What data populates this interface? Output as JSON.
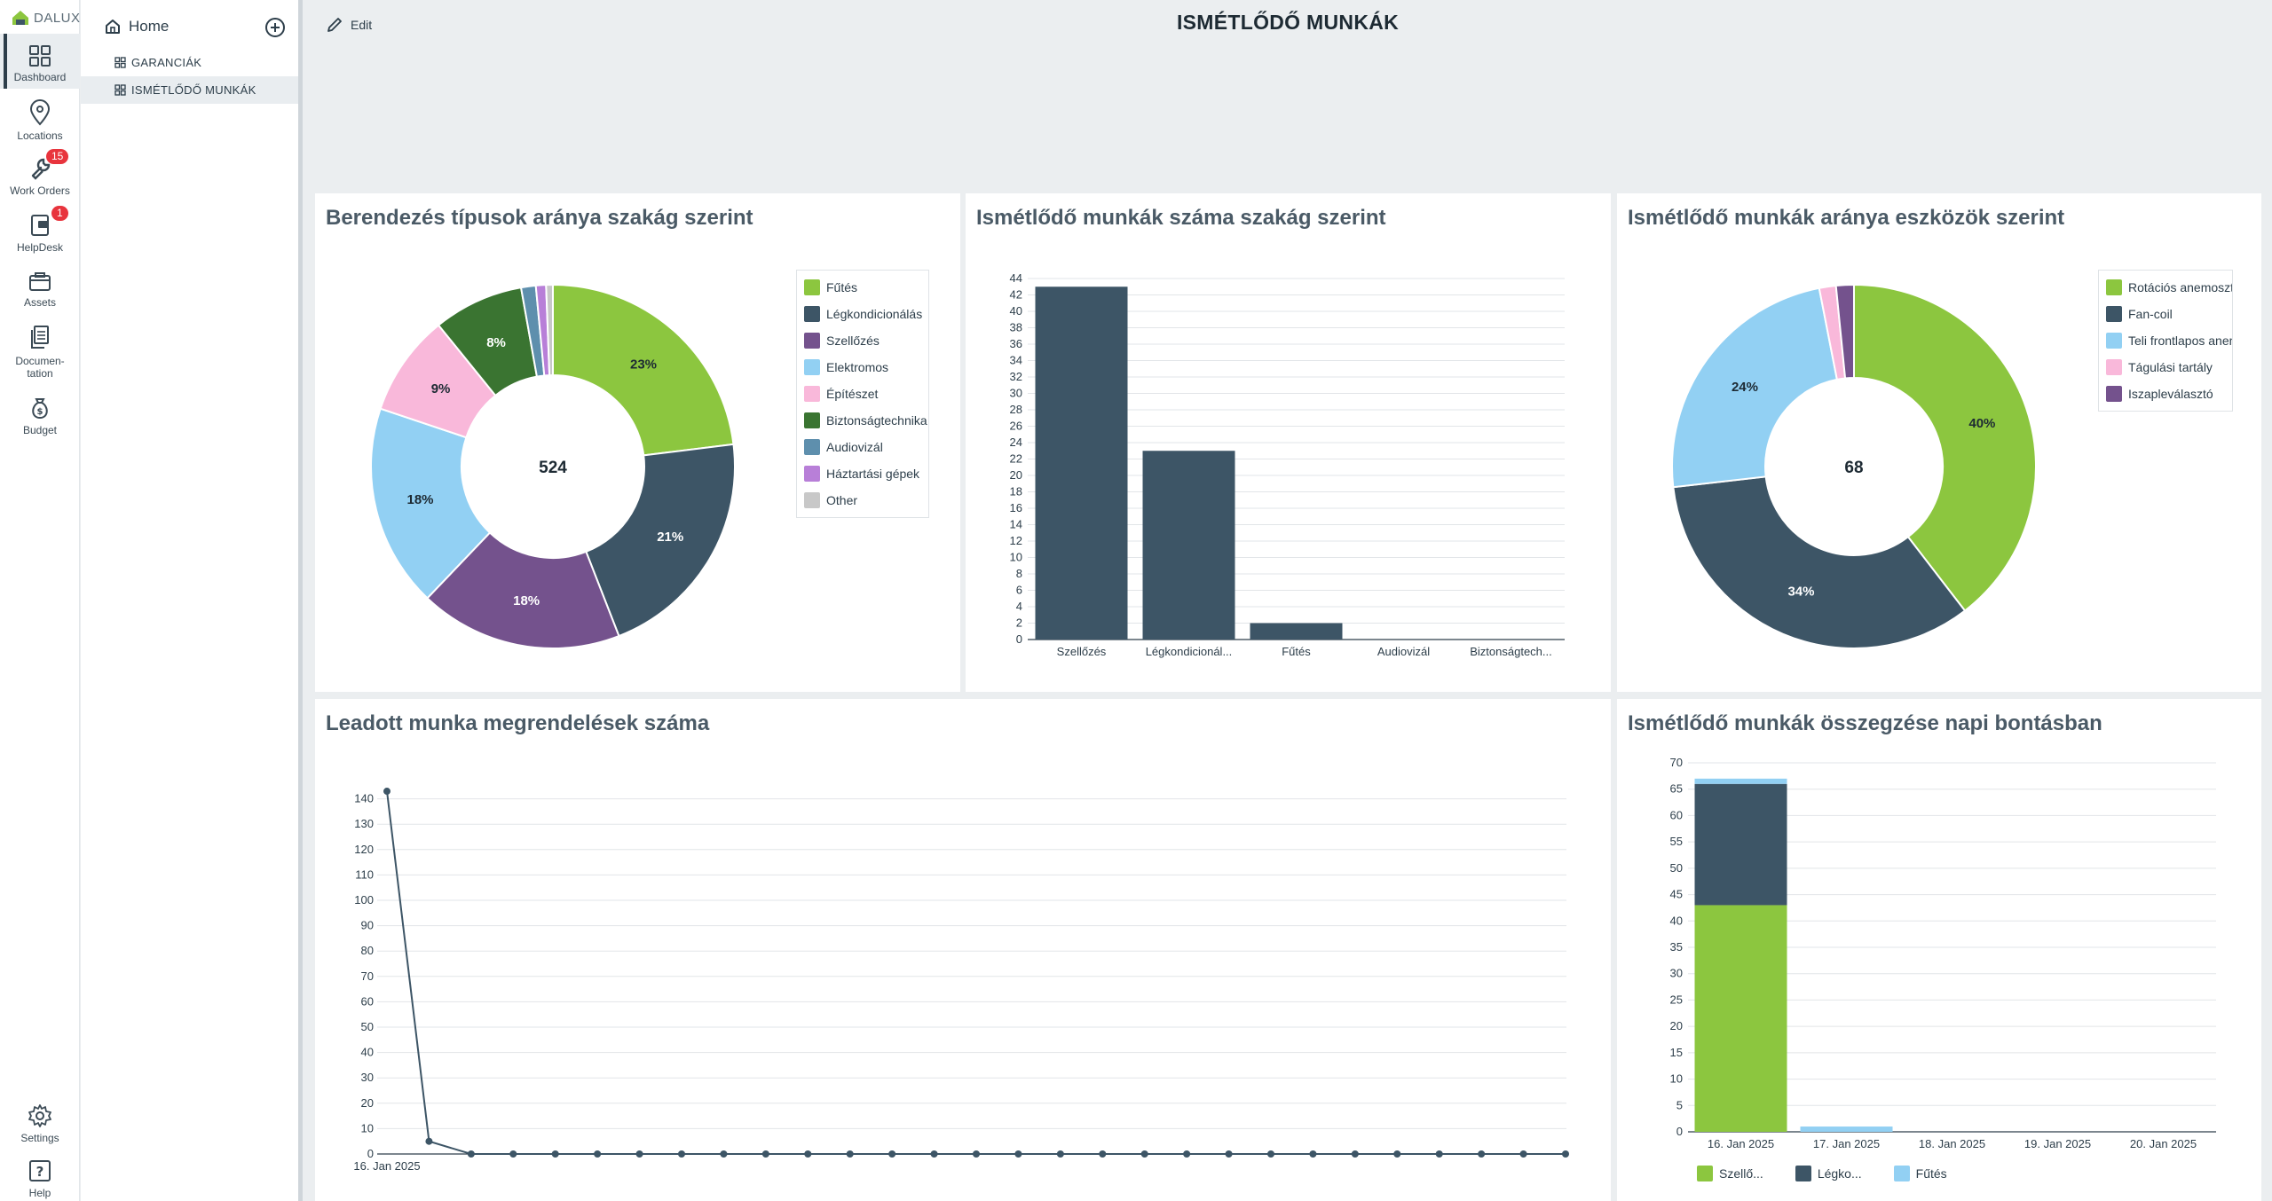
{
  "app": {
    "logo_text": "DALUX",
    "page_title": "ISMÉTLŐDŐ MUNKÁK",
    "edit_label": "Edit"
  },
  "rail": {
    "items": [
      {
        "label": "Dashboard",
        "icon": "dashboard-icon",
        "active": true
      },
      {
        "label": "Locations",
        "icon": "location-pin-icon"
      },
      {
        "label": "Work Orders",
        "icon": "wrench-icon",
        "badge": "15"
      },
      {
        "label": "HelpDesk",
        "icon": "helpdesk-icon",
        "badge": "1"
      },
      {
        "label": "Assets",
        "icon": "assets-icon"
      },
      {
        "label": "Documen-",
        "label2": "tation",
        "icon": "documentation-icon"
      },
      {
        "label": "Budget",
        "icon": "budget-icon"
      }
    ],
    "bottom": [
      {
        "label": "Settings",
        "icon": "gear-icon"
      },
      {
        "label": "Help",
        "icon": "help-icon"
      }
    ]
  },
  "nav": {
    "home_label": "Home",
    "items": [
      {
        "label": "GARANCIÁK",
        "selected": false
      },
      {
        "label": "ISMÉTLŐDŐ MUNKÁK",
        "selected": true
      }
    ]
  },
  "panels": {
    "p1_title": "Berendezés típusok aránya szakág szerint",
    "p2_title": "Ismétlődő munkák száma szakág szerint",
    "p3_title": "Ismétlődő munkák aránya eszközök szerint",
    "p4_title": "Leadott munka megrendelések száma",
    "p5_title": "Ismétlődő munkák összegzése napi bontásban"
  },
  "colors": {
    "green": "#8cc63f",
    "navy": "#3d5566",
    "purple": "#74528d",
    "lightblue": "#92d0f3",
    "pink": "#f9b8da",
    "darkgreen": "#3a7431",
    "steel": "#5e8fad",
    "violet": "#b87fd8",
    "gray": "#c8c8c8"
  },
  "chart_data": [
    {
      "type": "pie",
      "donut": true,
      "center_label": "524",
      "labels": [
        "Fűtés",
        "Légkondicionálás",
        "Szellőzés",
        "Elektromos",
        "Építészet",
        "Biztonságtechnika",
        "Audiovizál",
        "Háztartási gépek",
        "Other"
      ],
      "values": [
        23,
        21,
        18,
        18,
        9,
        8,
        1.3,
        0.9,
        0.6
      ],
      "value_labels": [
        "23%",
        "21%",
        "18%",
        "18%",
        "9%",
        "8%",
        "",
        "",
        ""
      ],
      "colors": [
        "#8cc63f",
        "#3d5566",
        "#74528d",
        "#92d0f3",
        "#f9b8da",
        "#3a7431",
        "#5e8fad",
        "#b87fd8",
        "#c8c8c8"
      ],
      "legend": "right"
    },
    {
      "type": "bar",
      "categories": [
        "Szellőzés",
        "Légkondicionál...",
        "Fűtés",
        "Audiovizál",
        "Biztonságtech..."
      ],
      "values": [
        43,
        23,
        2,
        0,
        0
      ],
      "ylim": [
        0,
        44
      ],
      "yticks": [
        0,
        2,
        4,
        6,
        8,
        10,
        12,
        14,
        16,
        18,
        20,
        22,
        24,
        26,
        28,
        30,
        32,
        34,
        36,
        38,
        40,
        42,
        44
      ],
      "grid": true,
      "color": "#3d5566"
    },
    {
      "type": "pie",
      "donut": true,
      "center_label": "68",
      "labels": [
        "Rotációs anemosztát",
        "Fan-coil",
        "Teli frontlapos anemosztát",
        "Tágulási tartály",
        "Iszapleválasztó"
      ],
      "legend_labels": [
        "Rotációs anemoszt",
        "Fan-coil",
        "Teli frontlapos anem",
        "Tágulási tartály",
        "Iszapleválasztó"
      ],
      "values": [
        40,
        34,
        24,
        1.5,
        1.6
      ],
      "value_labels": [
        "40%",
        "34%",
        "24%",
        "",
        ""
      ],
      "colors": [
        "#8cc63f",
        "#3d5566",
        "#92d0f3",
        "#f9b8da",
        "#74528d"
      ],
      "legend": "right"
    },
    {
      "type": "line",
      "x_first_label": "16. Jan 2025",
      "values": [
        143,
        5,
        0,
        0,
        0,
        0,
        0,
        0,
        0,
        0,
        0,
        0,
        0,
        0,
        0,
        0,
        0,
        0,
        0,
        0,
        0,
        0,
        0,
        0,
        0,
        0,
        0,
        0,
        0
      ],
      "ylim": [
        0,
        150
      ],
      "yticks": [
        0,
        10,
        20,
        30,
        40,
        50,
        60,
        70,
        80,
        90,
        100,
        110,
        120,
        130,
        140
      ],
      "grid": true,
      "color": "#3d5566"
    },
    {
      "type": "bar",
      "stacked": true,
      "categories": [
        "16. Jan 2025",
        "17. Jan 2025",
        "18. Jan 2025",
        "19. Jan 2025",
        "20. Jan 2025"
      ],
      "series": [
        {
          "name": "Szellő...",
          "values": [
            43,
            0,
            0,
            0,
            0
          ],
          "color": "#8cc63f"
        },
        {
          "name": "Légko...",
          "values": [
            23,
            0,
            0,
            0,
            0
          ],
          "color": "#3d5566"
        },
        {
          "name": "Fűtés",
          "values": [
            1,
            1,
            0,
            0,
            0
          ],
          "color": "#92d0f3"
        }
      ],
      "ylim": [
        0,
        70
      ],
      "yticks": [
        0,
        5,
        10,
        15,
        20,
        25,
        30,
        35,
        40,
        45,
        50,
        55,
        60,
        65,
        70
      ],
      "grid": true,
      "legend": "bottom"
    }
  ]
}
